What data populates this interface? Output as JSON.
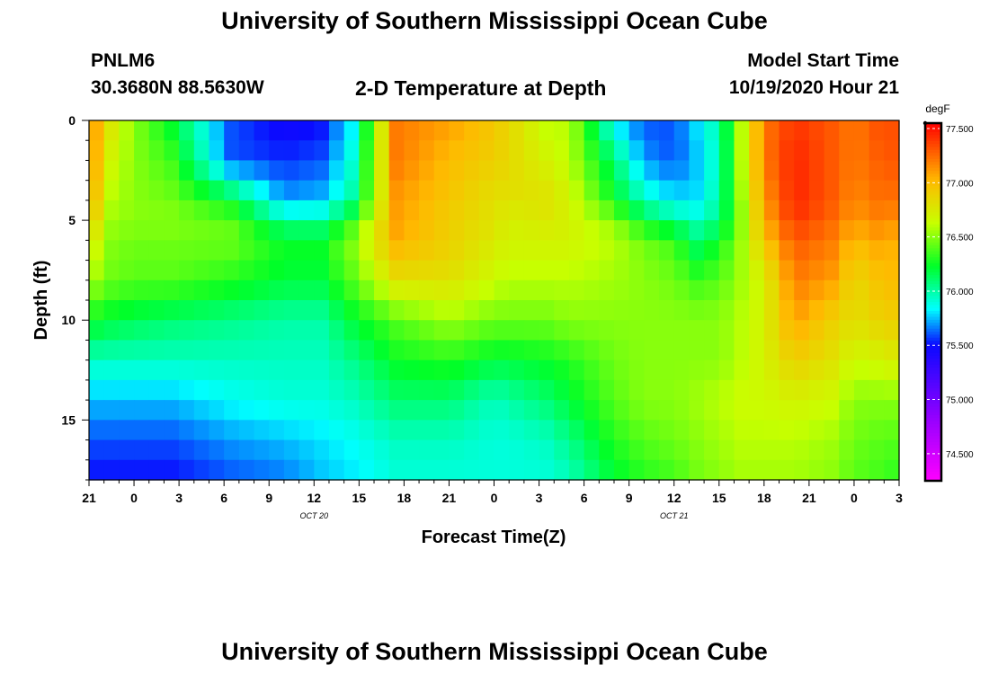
{
  "header": {
    "title": "University of Southern Mississippi Ocean Cube",
    "station_id": "PNLM6",
    "station_coords": "30.3680N 88.5630W",
    "chart_title": "2-D Temperature at Depth",
    "model_start_label": "Model Start Time",
    "model_start_value": "10/19/2020 Hour 21"
  },
  "footer": {
    "title": "University of Southern Mississippi Ocean Cube"
  },
  "chart_data": {
    "type": "heatmap",
    "title": "2-D Temperature at Depth",
    "xlabel": "Forecast Time(Z)",
    "ylabel": "Depth (ft)",
    "x_hours_range": [
      0,
      54
    ],
    "x_ticks": [
      {
        "hour": 0,
        "label": "21"
      },
      {
        "hour": 3,
        "label": "0"
      },
      {
        "hour": 6,
        "label": "3"
      },
      {
        "hour": 9,
        "label": "6"
      },
      {
        "hour": 12,
        "label": "9"
      },
      {
        "hour": 15,
        "label": "12"
      },
      {
        "hour": 18,
        "label": "15"
      },
      {
        "hour": 21,
        "label": "18"
      },
      {
        "hour": 24,
        "label": "21"
      },
      {
        "hour": 27,
        "label": "0"
      },
      {
        "hour": 30,
        "label": "3"
      },
      {
        "hour": 33,
        "label": "6"
      },
      {
        "hour": 36,
        "label": "9"
      },
      {
        "hour": 39,
        "label": "12"
      },
      {
        "hour": 42,
        "label": "15"
      },
      {
        "hour": 45,
        "label": "18"
      },
      {
        "hour": 48,
        "label": "21"
      },
      {
        "hour": 51,
        "label": "0"
      },
      {
        "hour": 54,
        "label": "3"
      }
    ],
    "date_labels": [
      {
        "hour": 15,
        "label": "OCT 20"
      },
      {
        "hour": 39,
        "label": "OCT 21"
      }
    ],
    "y_range": [
      0,
      18
    ],
    "y_ticks": [
      0,
      5,
      10,
      15
    ],
    "colorbar": {
      "unit": "degF",
      "range": [
        74.25,
        77.55
      ],
      "ticks": [
        "74.500",
        "75.000",
        "75.500",
        "76.000",
        "76.500",
        "77.000",
        "77.500"
      ]
    },
    "keyframes_hours": [
      0,
      0.8,
      1.3,
      3,
      5.5,
      9.5,
      13,
      15.5,
      17.5,
      20.5,
      24,
      27,
      28,
      30.5,
      32,
      35,
      37,
      39,
      40.5,
      42,
      43.5,
      45,
      47,
      49.5,
      51,
      53,
      54
    ],
    "depth_levels_ft": [
      0,
      2,
      4,
      5,
      6,
      8,
      10,
      12,
      14,
      16,
      18
    ],
    "temperature_columns_degF": [
      [
        77.3,
        77.2,
        77.1,
        77.0,
        76.8,
        76.6,
        76.3,
        75.95,
        75.75,
        75.6,
        75.5
      ],
      [
        76.9,
        76.9,
        76.8,
        76.7,
        76.6,
        76.5,
        76.2,
        75.95,
        75.75,
        75.6,
        75.5
      ],
      [
        76.8,
        76.7,
        76.6,
        76.55,
        76.5,
        76.45,
        76.2,
        75.95,
        75.75,
        75.6,
        75.5
      ],
      [
        76.5,
        76.5,
        76.5,
        76.5,
        76.45,
        76.4,
        76.15,
        75.95,
        75.75,
        75.6,
        75.5
      ],
      [
        76.2,
        76.35,
        76.45,
        76.5,
        76.45,
        76.4,
        76.1,
        75.95,
        75.75,
        75.6,
        75.5
      ],
      [
        75.6,
        75.6,
        76.2,
        76.4,
        76.45,
        76.3,
        76.05,
        75.95,
        75.85,
        75.7,
        75.6
      ],
      [
        75.45,
        75.55,
        75.7,
        76.0,
        76.25,
        76.2,
        76.0,
        75.95,
        75.9,
        75.75,
        75.65
      ],
      [
        75.5,
        75.6,
        75.75,
        76.0,
        76.25,
        76.2,
        76.0,
        75.95,
        75.9,
        75.8,
        75.75
      ],
      [
        75.8,
        75.9,
        76.0,
        76.3,
        76.5,
        76.4,
        76.2,
        76.05,
        75.95,
        75.85,
        75.8
      ],
      [
        77.2,
        77.2,
        77.1,
        77.1,
        77.05,
        76.8,
        76.4,
        76.25,
        76.1,
        75.95,
        75.9
      ],
      [
        77.1,
        77.0,
        76.95,
        76.9,
        76.9,
        76.8,
        76.55,
        76.3,
        76.1,
        75.95,
        75.9
      ],
      [
        76.95,
        76.9,
        76.8,
        76.8,
        76.75,
        76.65,
        76.45,
        76.2,
        75.95,
        75.9,
        75.9
      ],
      [
        76.85,
        76.85,
        76.8,
        76.7,
        76.7,
        76.6,
        76.45,
        76.2,
        76.0,
        75.9,
        75.9
      ],
      [
        76.6,
        76.7,
        76.8,
        76.75,
        76.7,
        76.6,
        76.45,
        76.25,
        76.1,
        75.95,
        75.9
      ],
      [
        76.6,
        76.6,
        76.7,
        76.7,
        76.7,
        76.6,
        76.5,
        76.3,
        76.2,
        76.05,
        75.95
      ],
      [
        75.8,
        76.1,
        76.25,
        76.5,
        76.6,
        76.55,
        76.5,
        76.45,
        76.4,
        76.3,
        76.2
      ],
      [
        75.6,
        75.7,
        75.95,
        76.2,
        76.45,
        76.5,
        76.5,
        76.5,
        76.5,
        76.4,
        76.3
      ],
      [
        75.6,
        75.6,
        75.8,
        76.05,
        76.35,
        76.45,
        76.5,
        76.5,
        76.5,
        76.45,
        76.35
      ],
      [
        75.8,
        75.75,
        75.8,
        75.95,
        76.1,
        76.35,
        76.5,
        76.5,
        76.55,
        76.5,
        76.45
      ],
      [
        76.0,
        75.95,
        76.0,
        76.05,
        76.25,
        76.4,
        76.5,
        76.5,
        76.6,
        76.55,
        76.5
      ],
      [
        76.6,
        76.6,
        76.55,
        76.5,
        76.55,
        76.55,
        76.6,
        76.6,
        76.65,
        76.6,
        76.55
      ],
      [
        77.2,
        77.2,
        77.1,
        77.05,
        76.95,
        76.7,
        76.7,
        76.7,
        76.65,
        76.6,
        76.55
      ],
      [
        77.4,
        77.45,
        77.45,
        77.4,
        77.3,
        77.2,
        77.1,
        76.9,
        76.7,
        76.6,
        76.55
      ],
      [
        77.3,
        77.3,
        77.3,
        77.25,
        77.2,
        77.1,
        76.9,
        76.8,
        76.65,
        76.55,
        76.5
      ],
      [
        77.2,
        77.2,
        77.15,
        77.1,
        77.0,
        76.85,
        76.8,
        76.65,
        76.5,
        76.45,
        76.4
      ],
      [
        77.35,
        77.3,
        77.25,
        77.2,
        77.1,
        77.0,
        76.9,
        76.7,
        76.5,
        76.4,
        76.35
      ],
      [
        77.3,
        77.3,
        77.2,
        77.1,
        77.0,
        77.0,
        76.9,
        76.75,
        76.5,
        76.4,
        76.3
      ]
    ]
  }
}
